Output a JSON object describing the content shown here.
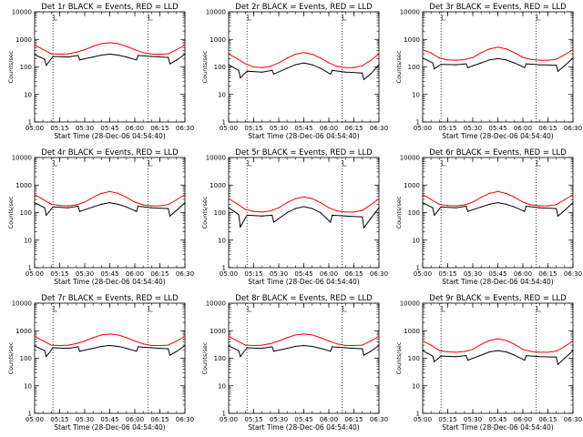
{
  "chart_data": {
    "type": "line",
    "layout": "3x3 grid",
    "yscale": "log",
    "ylim": [
      1,
      10000
    ],
    "ytick_labels": [
      "1",
      "10",
      "100",
      "1000",
      "10000"
    ],
    "ytick_values": [
      1,
      10,
      100,
      1000,
      10000
    ],
    "xtick_labels": [
      "05:00",
      "05:15",
      "05:30",
      "05:45",
      "06:00",
      "06:15",
      "06:30"
    ],
    "xtick_minutes": [
      300,
      315,
      330,
      345,
      360,
      375,
      390
    ],
    "xlim": [
      300,
      390
    ],
    "xlabel": "Start Time (28-Dec-06 04:54:40)",
    "ylabel": "Counts/sec",
    "series_legend_in_title": "BLACK = Events, RED = LLD",
    "series_colors": {
      "events": "#000000",
      "lld": "#ff0000"
    },
    "vertical_dotted_lines_minutes": [
      311,
      368
    ],
    "panels": [
      {
        "title": "Det 1r BLACK = Events, RED = LLD",
        "series": [
          {
            "key": "lld",
            "x": [
              300,
              305,
              310,
              315,
              320,
              325,
              330,
              335,
              340,
              345,
              350,
              355,
              360,
              365,
              370,
              375,
              380,
              385,
              390
            ],
            "y": [
              620,
              430,
              300,
              290,
              300,
              340,
              420,
              560,
              700,
              760,
              700,
              560,
              420,
              330,
              290,
              290,
              300,
              420,
              620
            ]
          },
          {
            "key": "events",
            "x": [
              300,
              306,
              307,
              311,
              320,
              326,
              327,
              335,
              340,
              345,
              350,
              355,
              361,
              362,
              370,
              380,
              381,
              385,
              390
            ],
            "y": [
              280,
              190,
              115,
              240,
              230,
              260,
              180,
              230,
              270,
              290,
              270,
              230,
              180,
              260,
              240,
              220,
              130,
              175,
              290
            ]
          }
        ]
      },
      {
        "title": "Det 2r BLACK = Events, RED = LLD",
        "series": [
          {
            "key": "lld",
            "x": [
              300,
              305,
              310,
              315,
              320,
              325,
              330,
              335,
              340,
              345,
              350,
              355,
              360,
              365,
              370,
              375,
              380,
              385,
              390
            ],
            "y": [
              300,
              200,
              130,
              100,
              95,
              105,
              140,
              210,
              290,
              330,
              290,
              210,
              140,
              105,
              95,
              95,
              110,
              170,
              300
            ]
          },
          {
            "key": "events",
            "x": [
              300,
              306,
              307,
              311,
              320,
              326,
              327,
              335,
              340,
              345,
              350,
              355,
              361,
              362,
              370,
              380,
              381,
              385,
              390
            ],
            "y": [
              120,
              75,
              40,
              70,
              65,
              75,
              55,
              90,
              120,
              140,
              120,
              90,
              55,
              75,
              65,
              60,
              35,
              55,
              120
            ]
          }
        ]
      },
      {
        "title": "Det 3r BLACK = Events, RED = LLD",
        "series": [
          {
            "key": "lld",
            "x": [
              300,
              305,
              310,
              315,
              320,
              325,
              330,
              335,
              340,
              345,
              350,
              355,
              360,
              365,
              370,
              375,
              380,
              385,
              390
            ],
            "y": [
              420,
              320,
              210,
              180,
              175,
              185,
              220,
              330,
              450,
              520,
              450,
              330,
              220,
              185,
              175,
              175,
              190,
              280,
              420
            ]
          },
          {
            "key": "events",
            "x": [
              300,
              306,
              307,
              311,
              320,
              326,
              327,
              335,
              340,
              345,
              350,
              355,
              361,
              362,
              370,
              380,
              381,
              385,
              390
            ],
            "y": [
              210,
              140,
              85,
              125,
              120,
              130,
              95,
              140,
              180,
              200,
              180,
              140,
              95,
              130,
              120,
              115,
              70,
              110,
              210
            ]
          }
        ]
      },
      {
        "title": "Det 4r BLACK = Events, RED = LLD",
        "series": [
          {
            "key": "lld",
            "x": [
              300,
              305,
              310,
              315,
              320,
              325,
              330,
              335,
              340,
              345,
              350,
              355,
              360,
              365,
              370,
              375,
              380,
              385,
              390
            ],
            "y": [
              450,
              300,
              200,
              180,
              175,
              190,
              240,
              360,
              500,
              580,
              500,
              360,
              240,
              190,
              175,
              175,
              195,
              290,
              450
            ]
          },
          {
            "key": "events",
            "x": [
              300,
              306,
              307,
              311,
              320,
              326,
              327,
              335,
              340,
              345,
              350,
              355,
              361,
              362,
              370,
              380,
              381,
              385,
              390
            ],
            "y": [
              230,
              150,
              80,
              160,
              150,
              170,
              110,
              160,
              200,
              230,
              200,
              160,
              110,
              170,
              150,
              140,
              75,
              120,
              230
            ]
          }
        ]
      },
      {
        "title": "Det 5r BLACK = Events, RED = LLD",
        "series": [
          {
            "key": "lld",
            "x": [
              300,
              305,
              310,
              315,
              320,
              325,
              330,
              335,
              340,
              345,
              350,
              355,
              360,
              365,
              370,
              375,
              380,
              385,
              390
            ],
            "y": [
              320,
              210,
              130,
              110,
              105,
              115,
              150,
              230,
              320,
              370,
              320,
              230,
              150,
              115,
              105,
              105,
              120,
              190,
              320
            ]
          },
          {
            "key": "events",
            "x": [
              300,
              306,
              307,
              311,
              320,
              326,
              327,
              335,
              340,
              345,
              350,
              355,
              361,
              362,
              370,
              380,
              381,
              385,
              390
            ],
            "y": [
              150,
              85,
              30,
              80,
              75,
              80,
              45,
              100,
              140,
              165,
              140,
              100,
              45,
              80,
              75,
              70,
              28,
              60,
              150
            ]
          }
        ]
      },
      {
        "title": "Det 6r BLACK = Events, RED = LLD",
        "series": [
          {
            "key": "lld",
            "x": [
              300,
              305,
              310,
              315,
              320,
              325,
              330,
              335,
              340,
              345,
              350,
              355,
              360,
              365,
              370,
              375,
              380,
              385,
              390
            ],
            "y": [
              450,
              300,
              200,
              180,
              175,
              190,
              240,
              360,
              500,
              580,
              500,
              360,
              240,
              190,
              175,
              175,
              195,
              290,
              450
            ]
          },
          {
            "key": "events",
            "x": [
              300,
              306,
              307,
              311,
              320,
              326,
              327,
              335,
              340,
              345,
              350,
              355,
              361,
              362,
              370,
              380,
              381,
              385,
              390
            ],
            "y": [
              230,
              150,
              80,
              160,
              150,
              170,
              110,
              160,
              200,
              230,
              200,
              160,
              110,
              170,
              150,
              140,
              75,
              120,
              230
            ]
          }
        ]
      },
      {
        "title": "Det 7r BLACK = Events, RED = LLD",
        "series": [
          {
            "key": "lld",
            "x": [
              300,
              305,
              310,
              315,
              320,
              325,
              330,
              335,
              340,
              345,
              350,
              355,
              360,
              365,
              370,
              375,
              380,
              385,
              390
            ],
            "y": [
              620,
              430,
              300,
              290,
              300,
              340,
              420,
              560,
              700,
              760,
              700,
              560,
              420,
              330,
              290,
              290,
              300,
              420,
              620
            ]
          },
          {
            "key": "events",
            "x": [
              300,
              306,
              307,
              311,
              320,
              326,
              327,
              335,
              340,
              345,
              350,
              355,
              361,
              362,
              370,
              380,
              381,
              385,
              390
            ],
            "y": [
              280,
              190,
              115,
              240,
              230,
              260,
              180,
              230,
              270,
              290,
              270,
              230,
              180,
              260,
              240,
              220,
              130,
              175,
              290
            ]
          }
        ]
      },
      {
        "title": "Det 8r BLACK = Events, RED = LLD",
        "series": [
          {
            "key": "lld",
            "x": [
              300,
              305,
              310,
              315,
              320,
              325,
              330,
              335,
              340,
              345,
              350,
              355,
              360,
              365,
              370,
              375,
              380,
              385,
              390
            ],
            "y": [
              620,
              430,
              300,
              290,
              300,
              340,
              420,
              560,
              700,
              760,
              700,
              560,
              420,
              330,
              290,
              290,
              300,
              420,
              620
            ]
          },
          {
            "key": "events",
            "x": [
              300,
              306,
              307,
              311,
              320,
              326,
              327,
              335,
              340,
              345,
              350,
              355,
              361,
              362,
              370,
              380,
              381,
              385,
              390
            ],
            "y": [
              280,
              190,
              115,
              240,
              230,
              260,
              180,
              230,
              270,
              290,
              270,
              230,
              180,
              260,
              240,
              220,
              130,
              175,
              290
            ]
          }
        ]
      },
      {
        "title": "Det 9r BLACK = Events, RED = LLD",
        "series": [
          {
            "key": "lld",
            "x": [
              300,
              305,
              310,
              315,
              320,
              325,
              330,
              335,
              340,
              345,
              350,
              355,
              360,
              365,
              370,
              375,
              380,
              385,
              390
            ],
            "y": [
              420,
              300,
              190,
              170,
              165,
              175,
              210,
              320,
              440,
              510,
              440,
              320,
              210,
              175,
              165,
              165,
              180,
              270,
              420
            ]
          },
          {
            "key": "events",
            "x": [
              300,
              306,
              307,
              311,
              320,
              326,
              327,
              335,
              340,
              345,
              350,
              355,
              361,
              362,
              370,
              380,
              381,
              385,
              390
            ],
            "y": [
              190,
              120,
              75,
              120,
              115,
              125,
              85,
              130,
              170,
              190,
              170,
              130,
              85,
              125,
              115,
              110,
              60,
              100,
              190
            ]
          }
        ]
      }
    ]
  }
}
